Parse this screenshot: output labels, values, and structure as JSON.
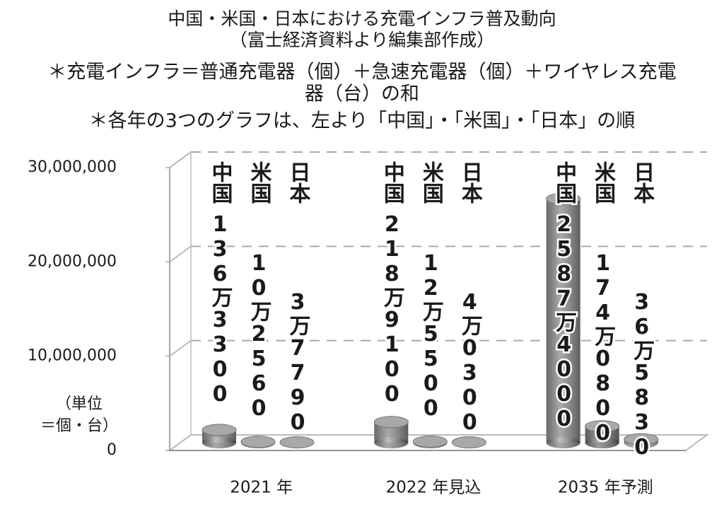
{
  "chart_data": {
    "type": "bar3d",
    "title": "中国・米国・日本における充電インフラ普及動向",
    "subtitle": "（富士経済資料より編集部作成）",
    "notes": [
      "＊充電インフラ＝普通充電器（個）＋急速充電器（個）＋ワイヤレス充電",
      "器（台）の和",
      "＊各年の3つのグラフは、左より「中国」・「米国」・「日本」の順"
    ],
    "unit_label": [
      "（単位",
      "＝個・台）"
    ],
    "categories": [
      "2021 年",
      "2022 年見込",
      "2035 年予測"
    ],
    "series": [
      {
        "name": "中国",
        "color": "#8c8c8c",
        "values": [
          1363300,
          2189100,
          25874000
        ],
        "value_labels": [
          "136万3300",
          "218万9100",
          "2587万4000"
        ]
      },
      {
        "name": "米国",
        "color": "#7a7a7a",
        "values": [
          102560,
          125500,
          1740800
        ],
        "value_labels": [
          "10万2560",
          "12万5500",
          "174万0800"
        ]
      },
      {
        "name": "日本",
        "color": "#b4b4b4",
        "values": [
          37790,
          40300,
          365830
        ],
        "value_labels": [
          "3万7790",
          "4万0300",
          "36万5830"
        ]
      }
    ],
    "ylim": [
      0,
      30000000
    ],
    "yticks": [
      0,
      {
        "value": 10000000,
        "label": "10,000,000"
      },
      {
        "value": 20000000,
        "label": "20,000,000"
      },
      {
        "value": 30000000,
        "label": "30,000,000"
      }
    ],
    "grid": true
  }
}
